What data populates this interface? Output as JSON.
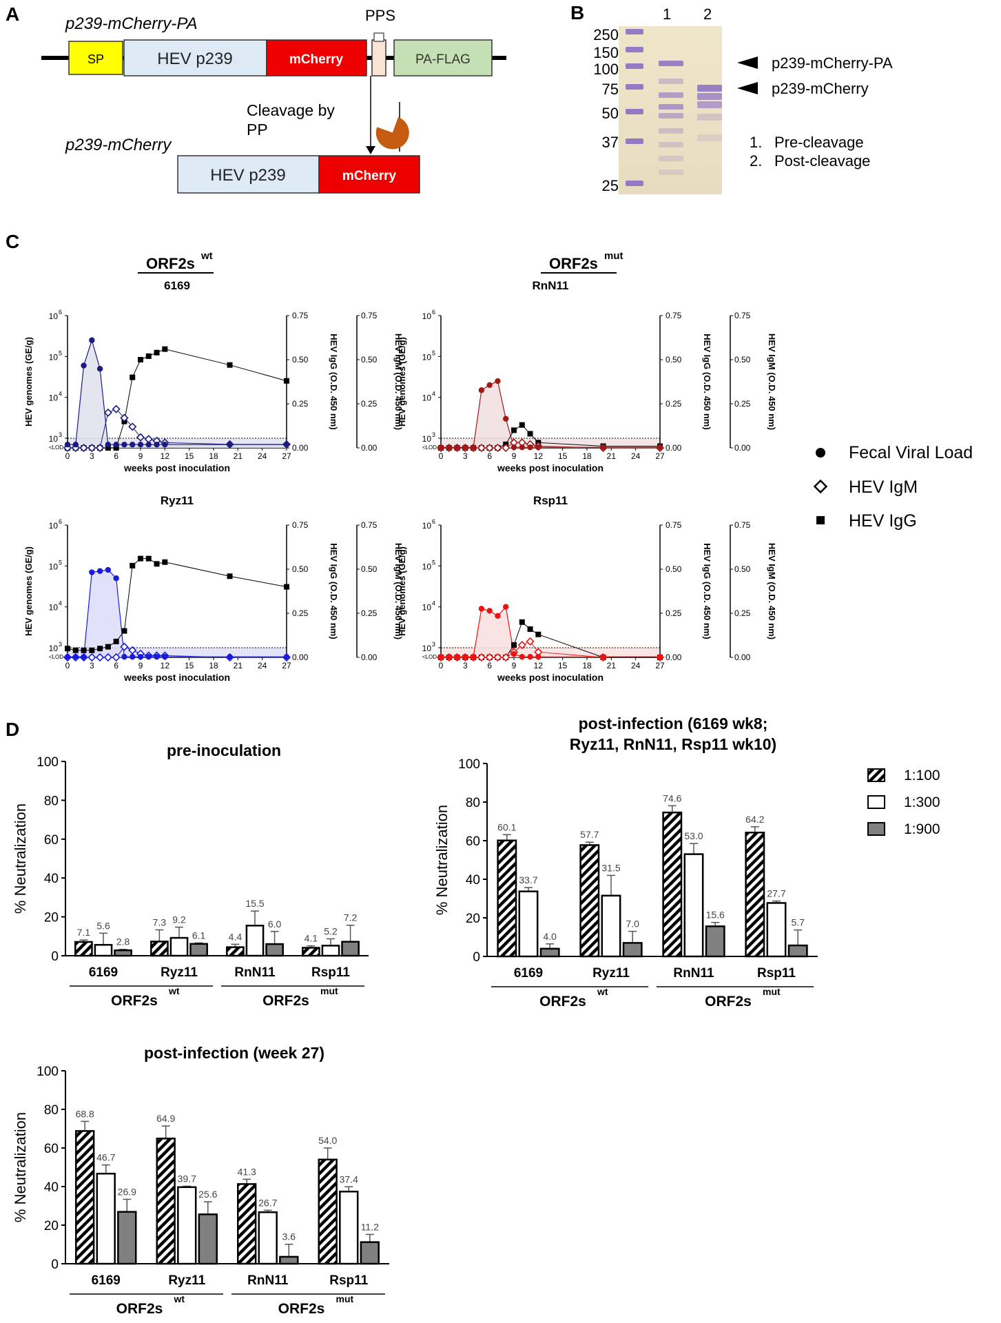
{
  "panel_letters": {
    "a": "A",
    "b": "B",
    "c": "C",
    "d": "D"
  },
  "panelA": {
    "construct1_label": "p239-mCherry-PA",
    "construct2_label": "p239-mCherry",
    "sp": "SP",
    "hev": "HEV p239",
    "mcherry": "mCherry",
    "pa_flag": "PA-FLAG",
    "pps": "PPS",
    "cleavage_line1": "Cleavage by",
    "cleavage_line2": "PP",
    "colors": {
      "sp": "#ffff00",
      "hev": "#dde9f5",
      "mcherry": "#ee0000",
      "pps": "#fbe3d6",
      "pa": "#c5e0b4",
      "enzyme": "#c55a11"
    }
  },
  "panelB": {
    "ladder": [
      "250",
      "150",
      "100",
      "75",
      "50",
      "37",
      "25"
    ],
    "lanes": [
      "1",
      "2"
    ],
    "band1": "p239-mCherry-PA",
    "band2": "p239-mCherry",
    "legend1_num": "1.",
    "legend1": "Pre-cleavage",
    "legend2_num": "2.",
    "legend2": "Post-cleavage"
  },
  "panelC": {
    "group_wt": "ORF2s",
    "group_mut": "ORF2s",
    "sup_wt": "wt",
    "sup_mut": "mut",
    "x_label": "weeks post inoculation",
    "y_left": "HEV genomes (GE/g)",
    "y_mid": "HEV IgG (O.D. 450 nm)",
    "y_right": "HEV IgM (O.D. 450 nm)",
    "x_ticks": [
      "0",
      "3",
      "6",
      "9",
      "12",
      "15",
      "18",
      "21",
      "24",
      "27"
    ],
    "y_left_ticks": [
      "10",
      "10",
      "10",
      "10"
    ],
    "y_left_exps": [
      "3",
      "4",
      "5",
      "6"
    ],
    "lod": "<LOD",
    "od_ticks": [
      "0.00",
      "0.25",
      "0.50",
      "0.75"
    ],
    "legend": [
      "Fecal Viral Load",
      "HEV IgM",
      "HEV IgG"
    ]
  },
  "chart_data": [
    {
      "type": "line",
      "title": "6169",
      "xlabel": "weeks post inoculation",
      "ylabel": "HEV genomes (GE/g)",
      "color": "#1a1a80",
      "fill": "#dfe0ec",
      "series": [
        {
          "name": "Fecal Viral Load",
          "x": [
            0,
            1,
            2,
            3,
            4,
            5,
            6,
            7,
            8,
            9,
            10,
            11,
            12,
            20,
            27
          ],
          "y": [
            700,
            700,
            60000,
            250000,
            50000,
            700,
            700,
            700,
            700,
            700,
            700,
            700,
            700,
            700,
            700
          ]
        },
        {
          "name": "HEV IgM",
          "x": [
            0,
            1,
            2,
            3,
            4,
            5,
            6,
            7,
            8,
            9,
            10,
            11,
            12,
            20,
            27
          ],
          "y": [
            0,
            0,
            0,
            0,
            0,
            0.2,
            0.22,
            0.17,
            0.12,
            0.06,
            0.05,
            0.04,
            0.03,
            0.02,
            0.02
          ]
        },
        {
          "name": "HEV IgG",
          "x": [
            0,
            1,
            2,
            3,
            4,
            5,
            6,
            7,
            8,
            9,
            10,
            11,
            12,
            20,
            27
          ],
          "y": [
            0,
            0,
            0,
            0,
            0,
            0,
            0,
            0.15,
            0.4,
            0.5,
            0.52,
            0.54,
            0.56,
            0.47,
            0.38
          ]
        }
      ]
    },
    {
      "type": "line",
      "title": "RnN11",
      "xlabel": "weeks post inoculation",
      "ylabel": "HEV genomes (GE/g)",
      "color": "#a01818",
      "fill": "#efdede",
      "series": [
        {
          "name": "Fecal Viral Load",
          "x": [
            0,
            1,
            2,
            3,
            4,
            5,
            6,
            7,
            8,
            9,
            10,
            11,
            12,
            20,
            27
          ],
          "y": [
            600,
            600,
            600,
            600,
            600,
            15000,
            20000,
            25000,
            3000,
            600,
            600,
            600,
            600,
            600,
            600
          ]
        },
        {
          "name": "HEV IgM",
          "x": [
            0,
            1,
            2,
            3,
            4,
            5,
            6,
            7,
            8,
            9,
            10,
            11,
            12,
            20,
            27
          ],
          "y": [
            0,
            0,
            0,
            0,
            0,
            0,
            0,
            0,
            0,
            0.03,
            0.03,
            0.02,
            0.01,
            0,
            0
          ]
        },
        {
          "name": "HEV IgG",
          "x": [
            0,
            1,
            2,
            3,
            4,
            5,
            6,
            7,
            8,
            9,
            10,
            11,
            12,
            20,
            27
          ],
          "y": [
            0,
            0,
            0,
            0,
            0,
            0,
            0,
            0,
            0.02,
            0.1,
            0.13,
            0.08,
            0.03,
            0.01,
            0.01
          ]
        }
      ]
    },
    {
      "type": "line",
      "title": "Ryz11",
      "xlabel": "weeks post inoculation",
      "ylabel": "HEV genomes (GE/g)",
      "color": "#1a1add",
      "fill": "#dcdcf8",
      "series": [
        {
          "name": "Fecal Viral Load",
          "x": [
            0,
            1,
            2,
            3,
            4,
            5,
            6,
            7,
            8,
            9,
            10,
            11,
            12,
            20,
            27
          ],
          "y": [
            600,
            600,
            600,
            70000,
            75000,
            80000,
            50000,
            600,
            600,
            600,
            600,
            600,
            600,
            600,
            600
          ]
        },
        {
          "name": "HEV IgM",
          "x": [
            0,
            1,
            2,
            3,
            4,
            5,
            6,
            7,
            8,
            9,
            10,
            11,
            12,
            20,
            27
          ],
          "y": [
            0,
            0,
            0,
            0,
            0,
            0,
            0,
            0.06,
            0.04,
            0.02,
            0.01,
            0.01,
            0.01,
            0,
            0
          ]
        },
        {
          "name": "HEV IgG",
          "x": [
            0,
            1,
            2,
            3,
            4,
            5,
            6,
            7,
            8,
            9,
            10,
            11,
            12,
            20,
            27
          ],
          "y": [
            0.05,
            0.04,
            0.04,
            0.04,
            0.05,
            0.06,
            0.09,
            0.15,
            0.52,
            0.56,
            0.56,
            0.53,
            0.54,
            0.46,
            0.4
          ]
        }
      ]
    },
    {
      "type": "line",
      "title": "Rsp11",
      "xlabel": "weeks post inoculation",
      "ylabel": "HEV genomes (GE/g)",
      "color": "#ee1111",
      "fill": "#f9dede",
      "series": [
        {
          "name": "Fecal Viral Load",
          "x": [
            0,
            1,
            2,
            3,
            4,
            5,
            6,
            7,
            8,
            9,
            10,
            11,
            12,
            20,
            27
          ],
          "y": [
            600,
            600,
            600,
            600,
            600,
            9000,
            8000,
            6000,
            10000,
            700,
            600,
            600,
            600,
            600,
            600
          ]
        },
        {
          "name": "HEV IgM",
          "x": [
            0,
            1,
            2,
            3,
            4,
            5,
            6,
            7,
            8,
            9,
            10,
            11,
            12,
            20,
            27
          ],
          "y": [
            0,
            0,
            0,
            0,
            0,
            0,
            0,
            0,
            0,
            0.03,
            0.07,
            0.09,
            0.03,
            0,
            0
          ]
        },
        {
          "name": "HEV IgG",
          "x": [
            0,
            1,
            2,
            3,
            4,
            5,
            6,
            7,
            8,
            9,
            10,
            11,
            12,
            20,
            27
          ],
          "y": [
            0,
            0,
            0,
            0,
            0,
            0,
            0,
            0,
            0,
            0.07,
            0.2,
            0.16,
            0.13,
            0,
            0
          ]
        }
      ]
    },
    {
      "type": "bar",
      "title": "pre-inoculation",
      "ylabel": "% Neutralization",
      "ylim": [
        0,
        100
      ],
      "y_ticks": [
        "0",
        "20",
        "40",
        "60",
        "80",
        "100"
      ],
      "categories": [
        "6169",
        "Ryz11",
        "RnN11",
        "Rsp11"
      ],
      "group_labels": [
        "ORF2s",
        "ORF2s"
      ],
      "group_sups": [
        "wt",
        "mut"
      ],
      "series": [
        {
          "name": "1:100",
          "values": [
            7.1,
            7.3,
            4.4,
            4.1
          ],
          "labels": [
            "7.1",
            "7.3",
            "4.4",
            "4.1"
          ],
          "errors": [
            1,
            6,
            1.5,
            1
          ]
        },
        {
          "name": "1:300",
          "values": [
            5.6,
            9.2,
            15.5,
            5.2
          ],
          "labels": [
            "5.6",
            "9.2",
            "15.5",
            "5.2"
          ],
          "errors": [
            6,
            5.5,
            7.5,
            3.5
          ]
        },
        {
          "name": "1:900",
          "values": [
            2.8,
            6.1,
            6.0,
            7.2
          ],
          "labels": [
            "2.8",
            "6.1",
            "6.0",
            "7.2"
          ],
          "errors": [
            0.5,
            0.5,
            6.5,
            8.5
          ]
        }
      ]
    },
    {
      "type": "bar",
      "title": "post-infection (6169 wk8; Ryz11, RnN11, Rsp11 wk10)",
      "title_lines": [
        "post-infection (6169 wk8;",
        "Ryz11, RnN11, Rsp11 wk10)"
      ],
      "ylabel": "% Neutralization",
      "ylim": [
        0,
        100
      ],
      "y_ticks": [
        "0",
        "20",
        "40",
        "60",
        "80",
        "100"
      ],
      "categories": [
        "6169",
        "Ryz11",
        "RnN11",
        "Rsp11"
      ],
      "group_labels": [
        "ORF2s",
        "ORF2s"
      ],
      "group_sups": [
        "wt",
        "mut"
      ],
      "series": [
        {
          "name": "1:100",
          "values": [
            60.1,
            57.7,
            74.6,
            64.2
          ],
          "labels": [
            "60.1",
            "57.7",
            "74.6",
            "64.2"
          ],
          "errors": [
            3,
            1.5,
            3.5,
            3
          ]
        },
        {
          "name": "1:300",
          "values": [
            33.7,
            31.5,
            53.0,
            27.7
          ],
          "labels": [
            "33.7",
            "31.5",
            "53.0",
            "27.7"
          ],
          "errors": [
            2,
            10.5,
            5.5,
            1
          ]
        },
        {
          "name": "1:900",
          "values": [
            4.0,
            7.0,
            15.6,
            5.7
          ],
          "labels": [
            "4.0",
            "7.0",
            "15.6",
            "5.7"
          ],
          "errors": [
            2.5,
            6,
            2,
            8
          ]
        }
      ]
    },
    {
      "type": "bar",
      "title": "post-infection (week 27)",
      "ylabel": "% Neutralization",
      "ylim": [
        0,
        100
      ],
      "y_ticks": [
        "0",
        "20",
        "40",
        "60",
        "80",
        "100"
      ],
      "categories": [
        "6169",
        "Ryz11",
        "RnN11",
        "Rsp11"
      ],
      "group_labels": [
        "ORF2s",
        "ORF2s"
      ],
      "group_sups": [
        "wt",
        "mut"
      ],
      "series": [
        {
          "name": "1:100",
          "values": [
            68.8,
            64.9,
            41.3,
            54.0
          ],
          "labels": [
            "68.8",
            "64.9",
            "41.3",
            "54.0"
          ],
          "errors": [
            5,
            6.5,
            2.5,
            6
          ]
        },
        {
          "name": "1:300",
          "values": [
            46.7,
            39.7,
            26.7,
            37.4
          ],
          "labels": [
            "46.7",
            "39.7",
            "26.7",
            "37.4"
          ],
          "errors": [
            4.5,
            0.5,
            1,
            2.5
          ]
        },
        {
          "name": "1:900",
          "values": [
            26.9,
            25.6,
            3.6,
            11.2
          ],
          "labels": [
            "26.9",
            "25.6",
            "3.6",
            "11.2"
          ],
          "errors": [
            6.5,
            6.5,
            6.5,
            4
          ]
        }
      ]
    }
  ],
  "bar_legend": [
    "1:100",
    "1:300",
    "1:900"
  ],
  "colors": {
    "black": "#000000",
    "gray_bar": "#808080",
    "gel_bg": "#ede5c8",
    "gel_band": "#8a6fc4"
  }
}
